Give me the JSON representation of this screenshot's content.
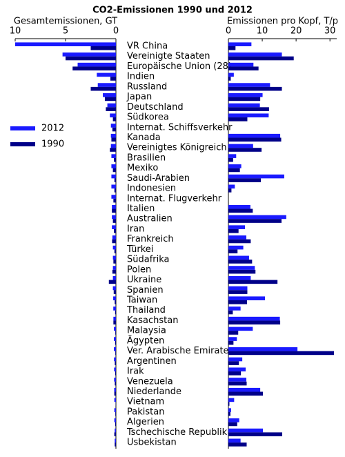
{
  "chart_data": {
    "type": "bar",
    "orientation": "horizontal",
    "title": "CO2-Emissionen 1990 und 2012",
    "categories": [
      "VR China",
      "Vereinigte Staaten",
      "Europäische Union (28)",
      "Indien",
      "Russland",
      "Japan",
      "Deutschland",
      "Südkorea",
      "Internat. Schiffsverkehr",
      "Kanada",
      "Vereinigtes Königreich",
      "Brasilien",
      "Mexiko",
      "Saudi-Arabien",
      "Indonesien",
      "Internat. Flugverkehr",
      "Italien",
      "Australien",
      "Iran",
      "Frankreich",
      "Türkei",
      "Südafrika",
      "Polen",
      "Ukraine",
      "Spanien",
      "Taiwan",
      "Thailand",
      "Kasachstan",
      "Malaysia",
      "Ägypten",
      "Ver. Arabische Emirate",
      "Argentinen",
      "Irak",
      "Venezuela",
      "Niederlande",
      "Vietnam",
      "Pakistan",
      "Algerien",
      "Tschechische Republik",
      "Usbekistan"
    ],
    "series": [
      {
        "name": "2012",
        "color": "#1a1aff"
      },
      {
        "name": "1990",
        "color": "#000088"
      }
    ],
    "legend": "left",
    "panels": [
      {
        "xlabel": "Gesamtemissionen, GT",
        "xlim": [
          0,
          10
        ],
        "xticks": [
          0,
          5,
          10
        ],
        "x_reversed": true,
        "series": [
          {
            "values": [
              10.0,
              5.3,
              3.8,
              1.9,
              1.8,
              1.3,
              0.85,
              0.6,
              0.5,
              0.5,
              0.5,
              0.45,
              0.45,
              0.45,
              0.45,
              0.45,
              0.4,
              0.4,
              0.4,
              0.35,
              0.3,
              0.3,
              0.3,
              0.3,
              0.3,
              0.27,
              0.26,
              0.25,
              0.2,
              0.2,
              0.2,
              0.19,
              0.18,
              0.18,
              0.17,
              0.16,
              0.16,
              0.16,
              0.12,
              0.12
            ]
          },
          {
            "values": [
              2.5,
              5.0,
              4.3,
              0.55,
              2.5,
              1.1,
              1.0,
              0.3,
              0.35,
              0.45,
              0.6,
              0.2,
              0.3,
              0.15,
              0.15,
              0.25,
              0.4,
              0.3,
              0.2,
              0.38,
              0.15,
              0.25,
              0.35,
              0.7,
              0.22,
              0.12,
              0.08,
              0.25,
              0.06,
              0.08,
              0.06,
              0.11,
              0.07,
              0.11,
              0.16,
              0.02,
              0.06,
              0.07,
              0.16,
              0.12
            ]
          }
        ]
      },
      {
        "xlabel": "Emissionen pro Kopf, T/p",
        "xlim": [
          0,
          32
        ],
        "xticks": [
          0,
          10,
          20,
          30
        ],
        "x_reversed": false,
        "series": [
          {
            "values": [
              6.8,
              15.8,
              7.4,
              1.6,
              12.3,
              10.1,
              9.3,
              11.9,
              null,
              15.3,
              7.3,
              2.3,
              3.8,
              16.5,
              1.9,
              null,
              6.5,
              17.1,
              4.9,
              5.3,
              4.4,
              6.1,
              7.8,
              6.6,
              5.6,
              10.8,
              3.6,
              15.2,
              7.2,
              2.5,
              20.4,
              4.1,
              5.1,
              5.3,
              9.4,
              1.7,
              0.8,
              3.2,
              10.2,
              3.6
            ]
          },
          {
            "values": [
              2.1,
              19.3,
              8.9,
              0.7,
              15.8,
              9.4,
              12.0,
              5.6,
              null,
              15.6,
              9.8,
              1.4,
              3.4,
              9.6,
              0.9,
              null,
              7.2,
              15.7,
              3.0,
              6.6,
              2.7,
              7.0,
              8.0,
              14.5,
              5.6,
              5.5,
              1.3,
              15.3,
              2.9,
              1.5,
              31.2,
              3.1,
              3.7,
              5.4,
              10.2,
              0.3,
              0.6,
              2.6,
              15.9,
              5.4
            ]
          }
        ]
      }
    ]
  }
}
